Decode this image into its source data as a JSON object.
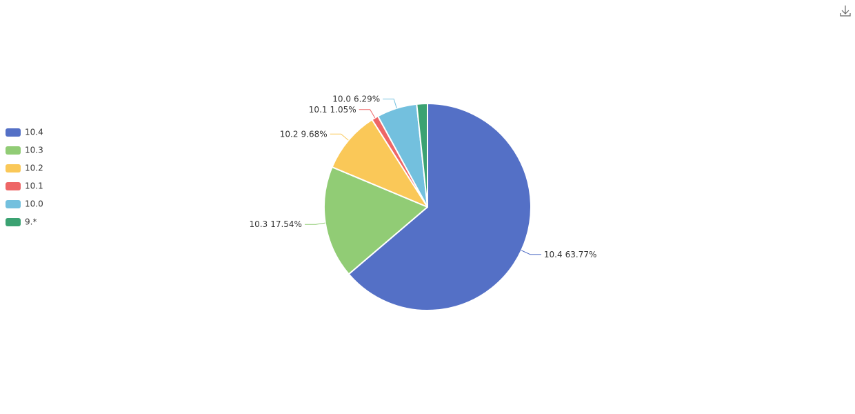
{
  "chart_data": {
    "type": "pie",
    "categories": [
      "10.4",
      "10.3",
      "10.2",
      "10.1",
      "10.0",
      "9.*"
    ],
    "values": [
      63.77,
      17.54,
      9.68,
      1.05,
      6.29,
      1.67
    ],
    "value_labels": [
      "63.77%",
      "17.54%",
      "9.68%",
      "1.05%",
      "6.29%",
      null
    ],
    "colors": [
      "#5470c6",
      "#91cc75",
      "#fac858",
      "#ee6666",
      "#73c0de",
      "#3ba272"
    ],
    "legend": "left"
  }
}
